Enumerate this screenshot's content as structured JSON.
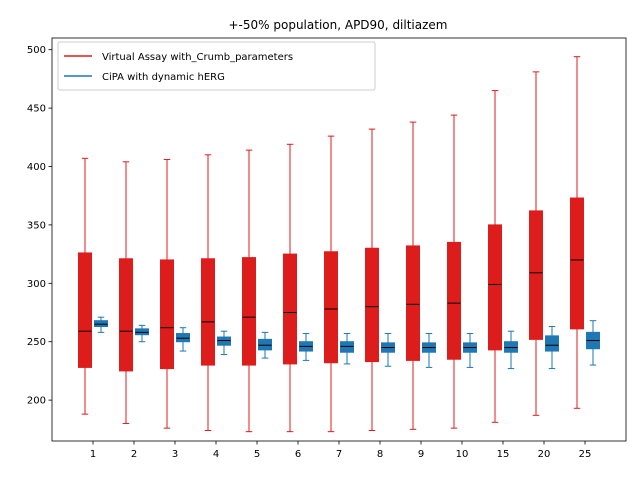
{
  "chart_data": {
    "type": "box",
    "title": "+-50% population, APD90, diltiazem",
    "xlabel": "",
    "ylabel": "",
    "categories": [
      "1",
      "2",
      "3",
      "4",
      "5",
      "6",
      "7",
      "8",
      "9",
      "10",
      "15",
      "20",
      "25"
    ],
    "ylim": [
      165,
      510
    ],
    "yticks": [
      200,
      250,
      300,
      350,
      400,
      450,
      500
    ],
    "grid": false,
    "legend_position": "top-left",
    "series": [
      {
        "name": "Virtual Assay with_Crumb_parameters",
        "color": "#dd1c1c",
        "boxes": [
          {
            "whislo": 188,
            "q1": 228,
            "med": 259,
            "q3": 326,
            "whishi": 407
          },
          {
            "whislo": 180,
            "q1": 225,
            "med": 259,
            "q3": 321,
            "whishi": 404
          },
          {
            "whislo": 176,
            "q1": 227,
            "med": 262,
            "q3": 320,
            "whishi": 406
          },
          {
            "whislo": 174,
            "q1": 230,
            "med": 267,
            "q3": 321,
            "whishi": 410
          },
          {
            "whislo": 173,
            "q1": 230,
            "med": 271,
            "q3": 322,
            "whishi": 414
          },
          {
            "whislo": 173,
            "q1": 231,
            "med": 275,
            "q3": 325,
            "whishi": 419
          },
          {
            "whislo": 173,
            "q1": 232,
            "med": 278,
            "q3": 327,
            "whishi": 426
          },
          {
            "whislo": 174,
            "q1": 233,
            "med": 280,
            "q3": 330,
            "whishi": 432
          },
          {
            "whislo": 175,
            "q1": 234,
            "med": 282,
            "q3": 332,
            "whishi": 438
          },
          {
            "whislo": 176,
            "q1": 235,
            "med": 283,
            "q3": 335,
            "whishi": 444
          },
          {
            "whislo": 181,
            "q1": 243,
            "med": 299,
            "q3": 350,
            "whishi": 465
          },
          {
            "whislo": 187,
            "q1": 252,
            "med": 309,
            "q3": 362,
            "whishi": 481
          },
          {
            "whislo": 193,
            "q1": 261,
            "med": 320,
            "q3": 373,
            "whishi": 494
          }
        ]
      },
      {
        "name": "CiPA with dynamic hERG",
        "color": "#1f77b4",
        "boxes": [
          {
            "whislo": 258,
            "q1": 263,
            "med": 265,
            "q3": 268,
            "whishi": 271
          },
          {
            "whislo": 250,
            "q1": 256,
            "med": 258,
            "q3": 261,
            "whishi": 264
          },
          {
            "whislo": 242,
            "q1": 250,
            "med": 253,
            "q3": 257,
            "whishi": 262
          },
          {
            "whislo": 239,
            "q1": 247,
            "med": 251,
            "q3": 254,
            "whishi": 259
          },
          {
            "whislo": 236,
            "q1": 243,
            "med": 247,
            "q3": 252,
            "whishi": 258
          },
          {
            "whislo": 234,
            "q1": 242,
            "med": 246,
            "q3": 250,
            "whishi": 257
          },
          {
            "whislo": 231,
            "q1": 241,
            "med": 246,
            "q3": 250,
            "whishi": 257
          },
          {
            "whislo": 229,
            "q1": 241,
            "med": 245,
            "q3": 249,
            "whishi": 257
          },
          {
            "whislo": 228,
            "q1": 241,
            "med": 245,
            "q3": 249,
            "whishi": 257
          },
          {
            "whislo": 228,
            "q1": 241,
            "med": 245,
            "q3": 249,
            "whishi": 257
          },
          {
            "whislo": 227,
            "q1": 241,
            "med": 245,
            "q3": 250,
            "whishi": 259
          },
          {
            "whislo": 227,
            "q1": 242,
            "med": 247,
            "q3": 255,
            "whishi": 263
          },
          {
            "whislo": 230,
            "q1": 244,
            "med": 251,
            "q3": 258,
            "whishi": 268
          }
        ]
      }
    ]
  }
}
